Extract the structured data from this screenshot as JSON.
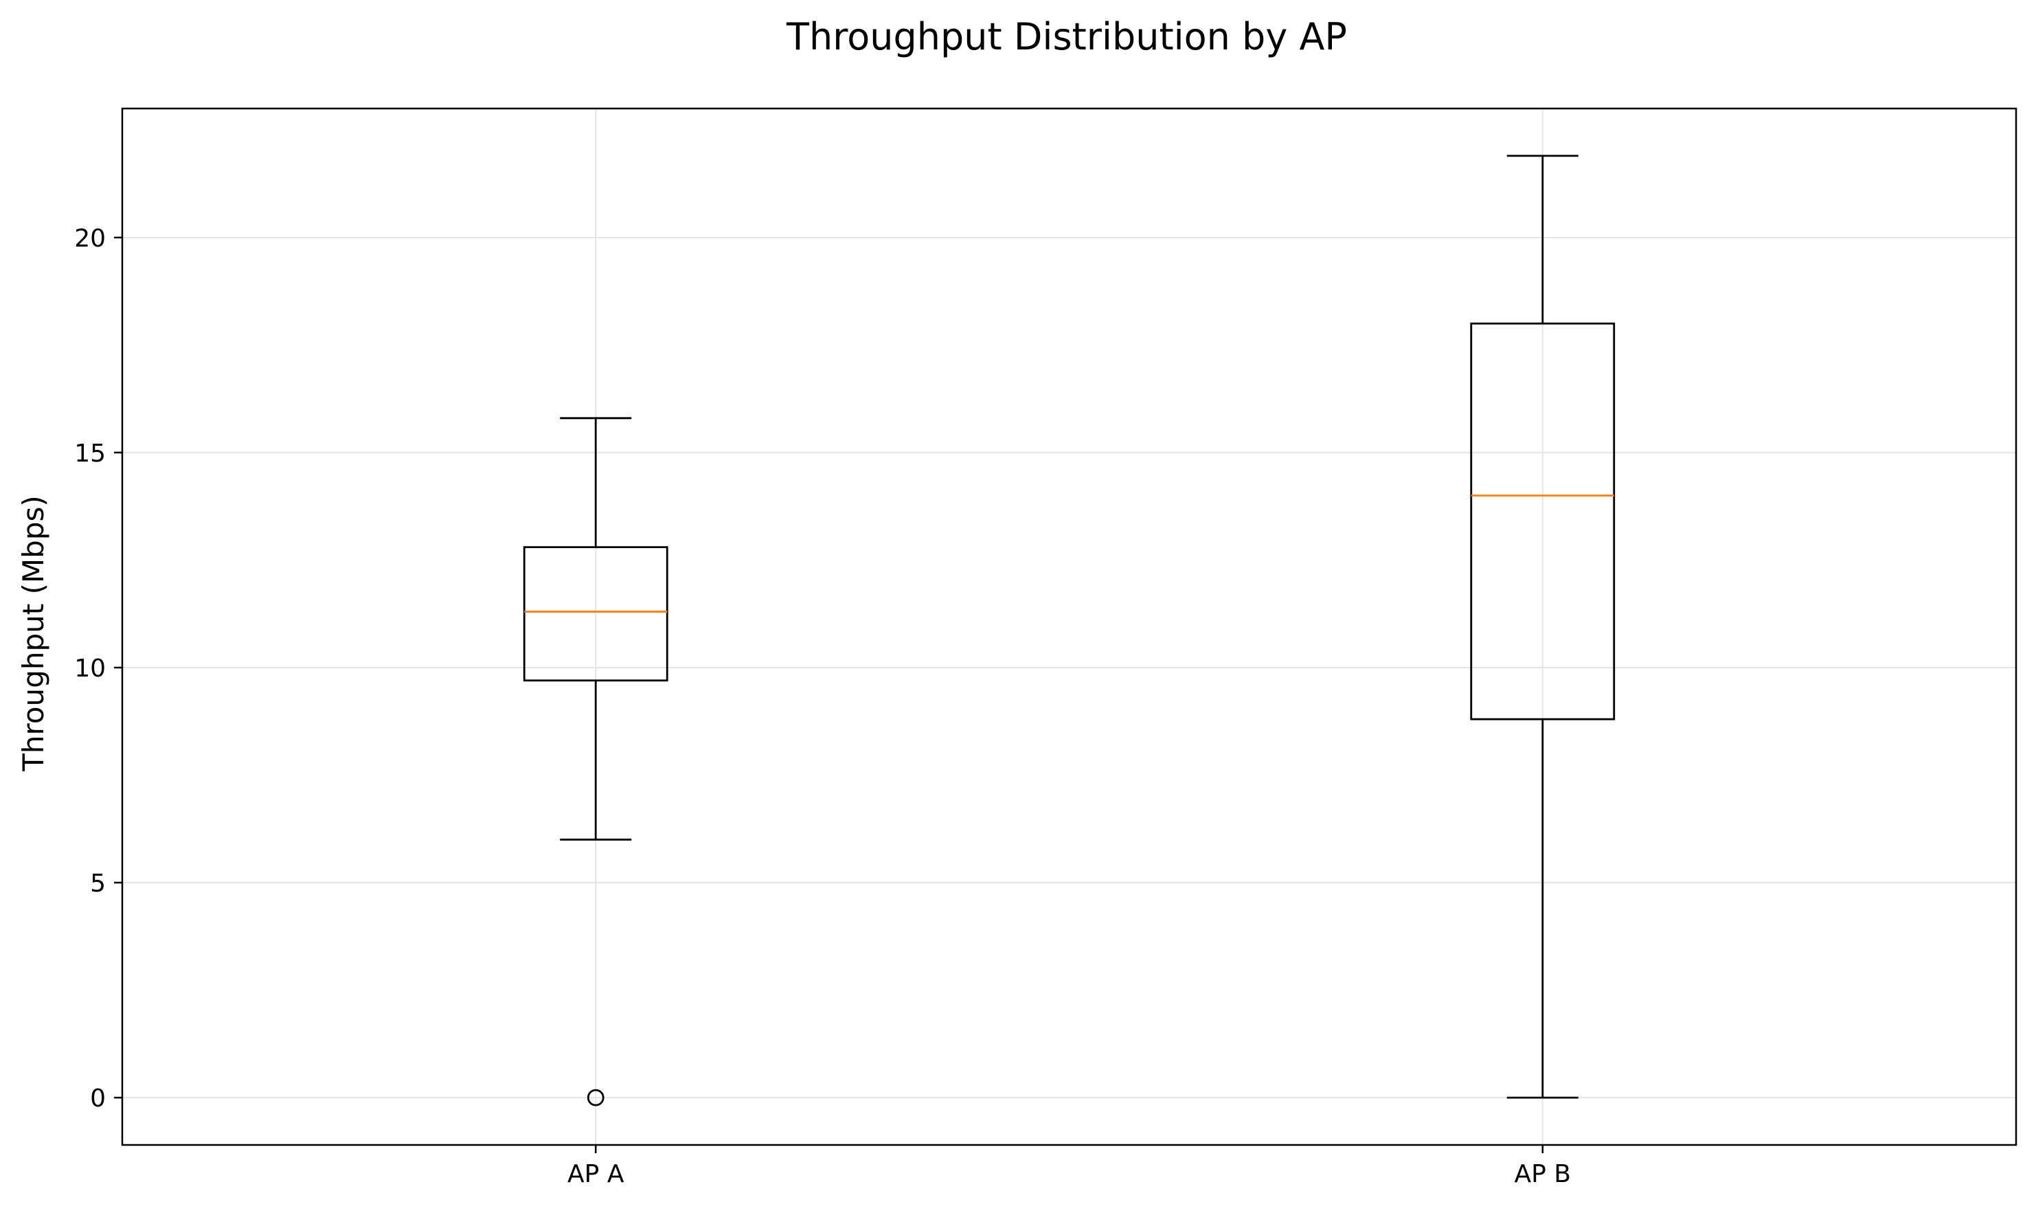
{
  "chart_data": {
    "type": "box",
    "title": "Throughput Distribution by AP",
    "xlabel": "",
    "ylabel": "Throughput (Mbps)",
    "ylim": [
      -1.1,
      23.0
    ],
    "yticks": [
      0,
      5,
      10,
      15,
      20
    ],
    "grid": true,
    "categories": [
      "AP A",
      "AP B"
    ],
    "boxes": [
      {
        "category": "AP A",
        "whisker_low": 6.0,
        "q1": 9.7,
        "median": 11.3,
        "q3": 12.8,
        "whisker_high": 15.8,
        "outliers": [
          0.0
        ]
      },
      {
        "category": "AP B",
        "whisker_low": 0.0,
        "q1": 8.8,
        "median": 14.0,
        "q3": 18.0,
        "whisker_high": 21.9,
        "outliers": []
      }
    ],
    "colors": {
      "box": "#000000",
      "median": "#ff7f0e",
      "grid": "#e5e5e5",
      "axes": "#000000"
    }
  }
}
